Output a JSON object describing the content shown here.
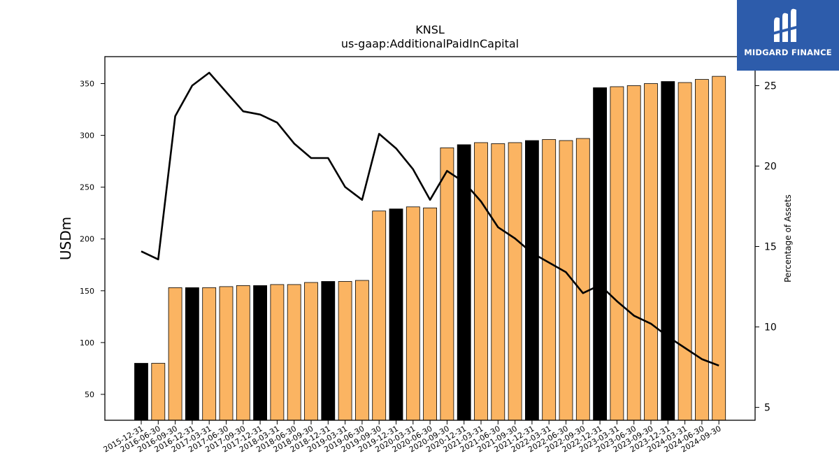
{
  "chart_data": {
    "type": "bar",
    "title": "KNSL",
    "subtitle": "us-gaap:AdditionalPaidInCapital",
    "ylabel": "USDm",
    "y2label": "Percentage of Assets",
    "ylim": [
      25,
      376
    ],
    "y2lim": [
      4.2,
      26.8
    ],
    "yticks": [
      50,
      100,
      150,
      200,
      250,
      300,
      350
    ],
    "y2ticks": [
      5,
      10,
      15,
      20,
      25
    ],
    "grid": false,
    "categories": [
      "2015-12-31",
      "2016-06-30",
      "2016-09-30",
      "2016-12-31",
      "2017-03-31",
      "2017-06-30",
      "2017-09-30",
      "2017-12-31",
      "2018-03-31",
      "2018-06-30",
      "2018-09-30",
      "2018-12-31",
      "2019-03-31",
      "2019-06-30",
      "2019-09-30",
      "2019-12-31",
      "2020-03-31",
      "2020-06-30",
      "2020-09-30",
      "2020-12-31",
      "2021-03-31",
      "2021-06-30",
      "2021-09-30",
      "2021-12-31",
      "2022-03-31",
      "2022-06-30",
      "2022-09-30",
      "2022-12-31",
      "2023-03-31",
      "2023-06-30",
      "2023-09-30",
      "2023-12-31",
      "2024-03-31",
      "2024-06-30",
      "2024-09-30"
    ],
    "series": [
      {
        "kind": "bar",
        "values": [
          80,
          80,
          153,
          153,
          153,
          154,
          155,
          155,
          156,
          156,
          158,
          159,
          159,
          160,
          227,
          229,
          231,
          230,
          288,
          291,
          293,
          292,
          293,
          295,
          296,
          295,
          297,
          346,
          347,
          348,
          350,
          352,
          351,
          354,
          357
        ],
        "year_end_flags": [
          1,
          0,
          0,
          1,
          0,
          0,
          0,
          1,
          0,
          0,
          0,
          1,
          0,
          0,
          0,
          1,
          0,
          0,
          0,
          1,
          0,
          0,
          0,
          1,
          0,
          0,
          0,
          1,
          0,
          0,
          0,
          1,
          0,
          0,
          0
        ]
      },
      {
        "kind": "line",
        "axis": "right",
        "values": [
          14.7,
          14.2,
          23.1,
          25.0,
          25.8,
          24.6,
          23.4,
          23.2,
          22.7,
          21.4,
          20.5,
          20.5,
          18.7,
          17.9,
          22.0,
          21.1,
          19.8,
          17.9,
          19.7,
          19.0,
          17.8,
          16.2,
          15.5,
          14.6,
          14.0,
          13.4,
          12.1,
          12.6,
          11.6,
          10.7,
          10.2,
          9.4,
          8.7,
          8.0,
          7.6
        ]
      }
    ]
  },
  "colors": {
    "bar_fill": "#fbb462",
    "bar_year_end": "#000000",
    "bar_edge": "#000000",
    "line": "#000000",
    "logo_bg": "#2d5cab"
  },
  "logo": {
    "text": "MIDGARD FINANCE",
    "icon": "midgard-logo-icon"
  }
}
